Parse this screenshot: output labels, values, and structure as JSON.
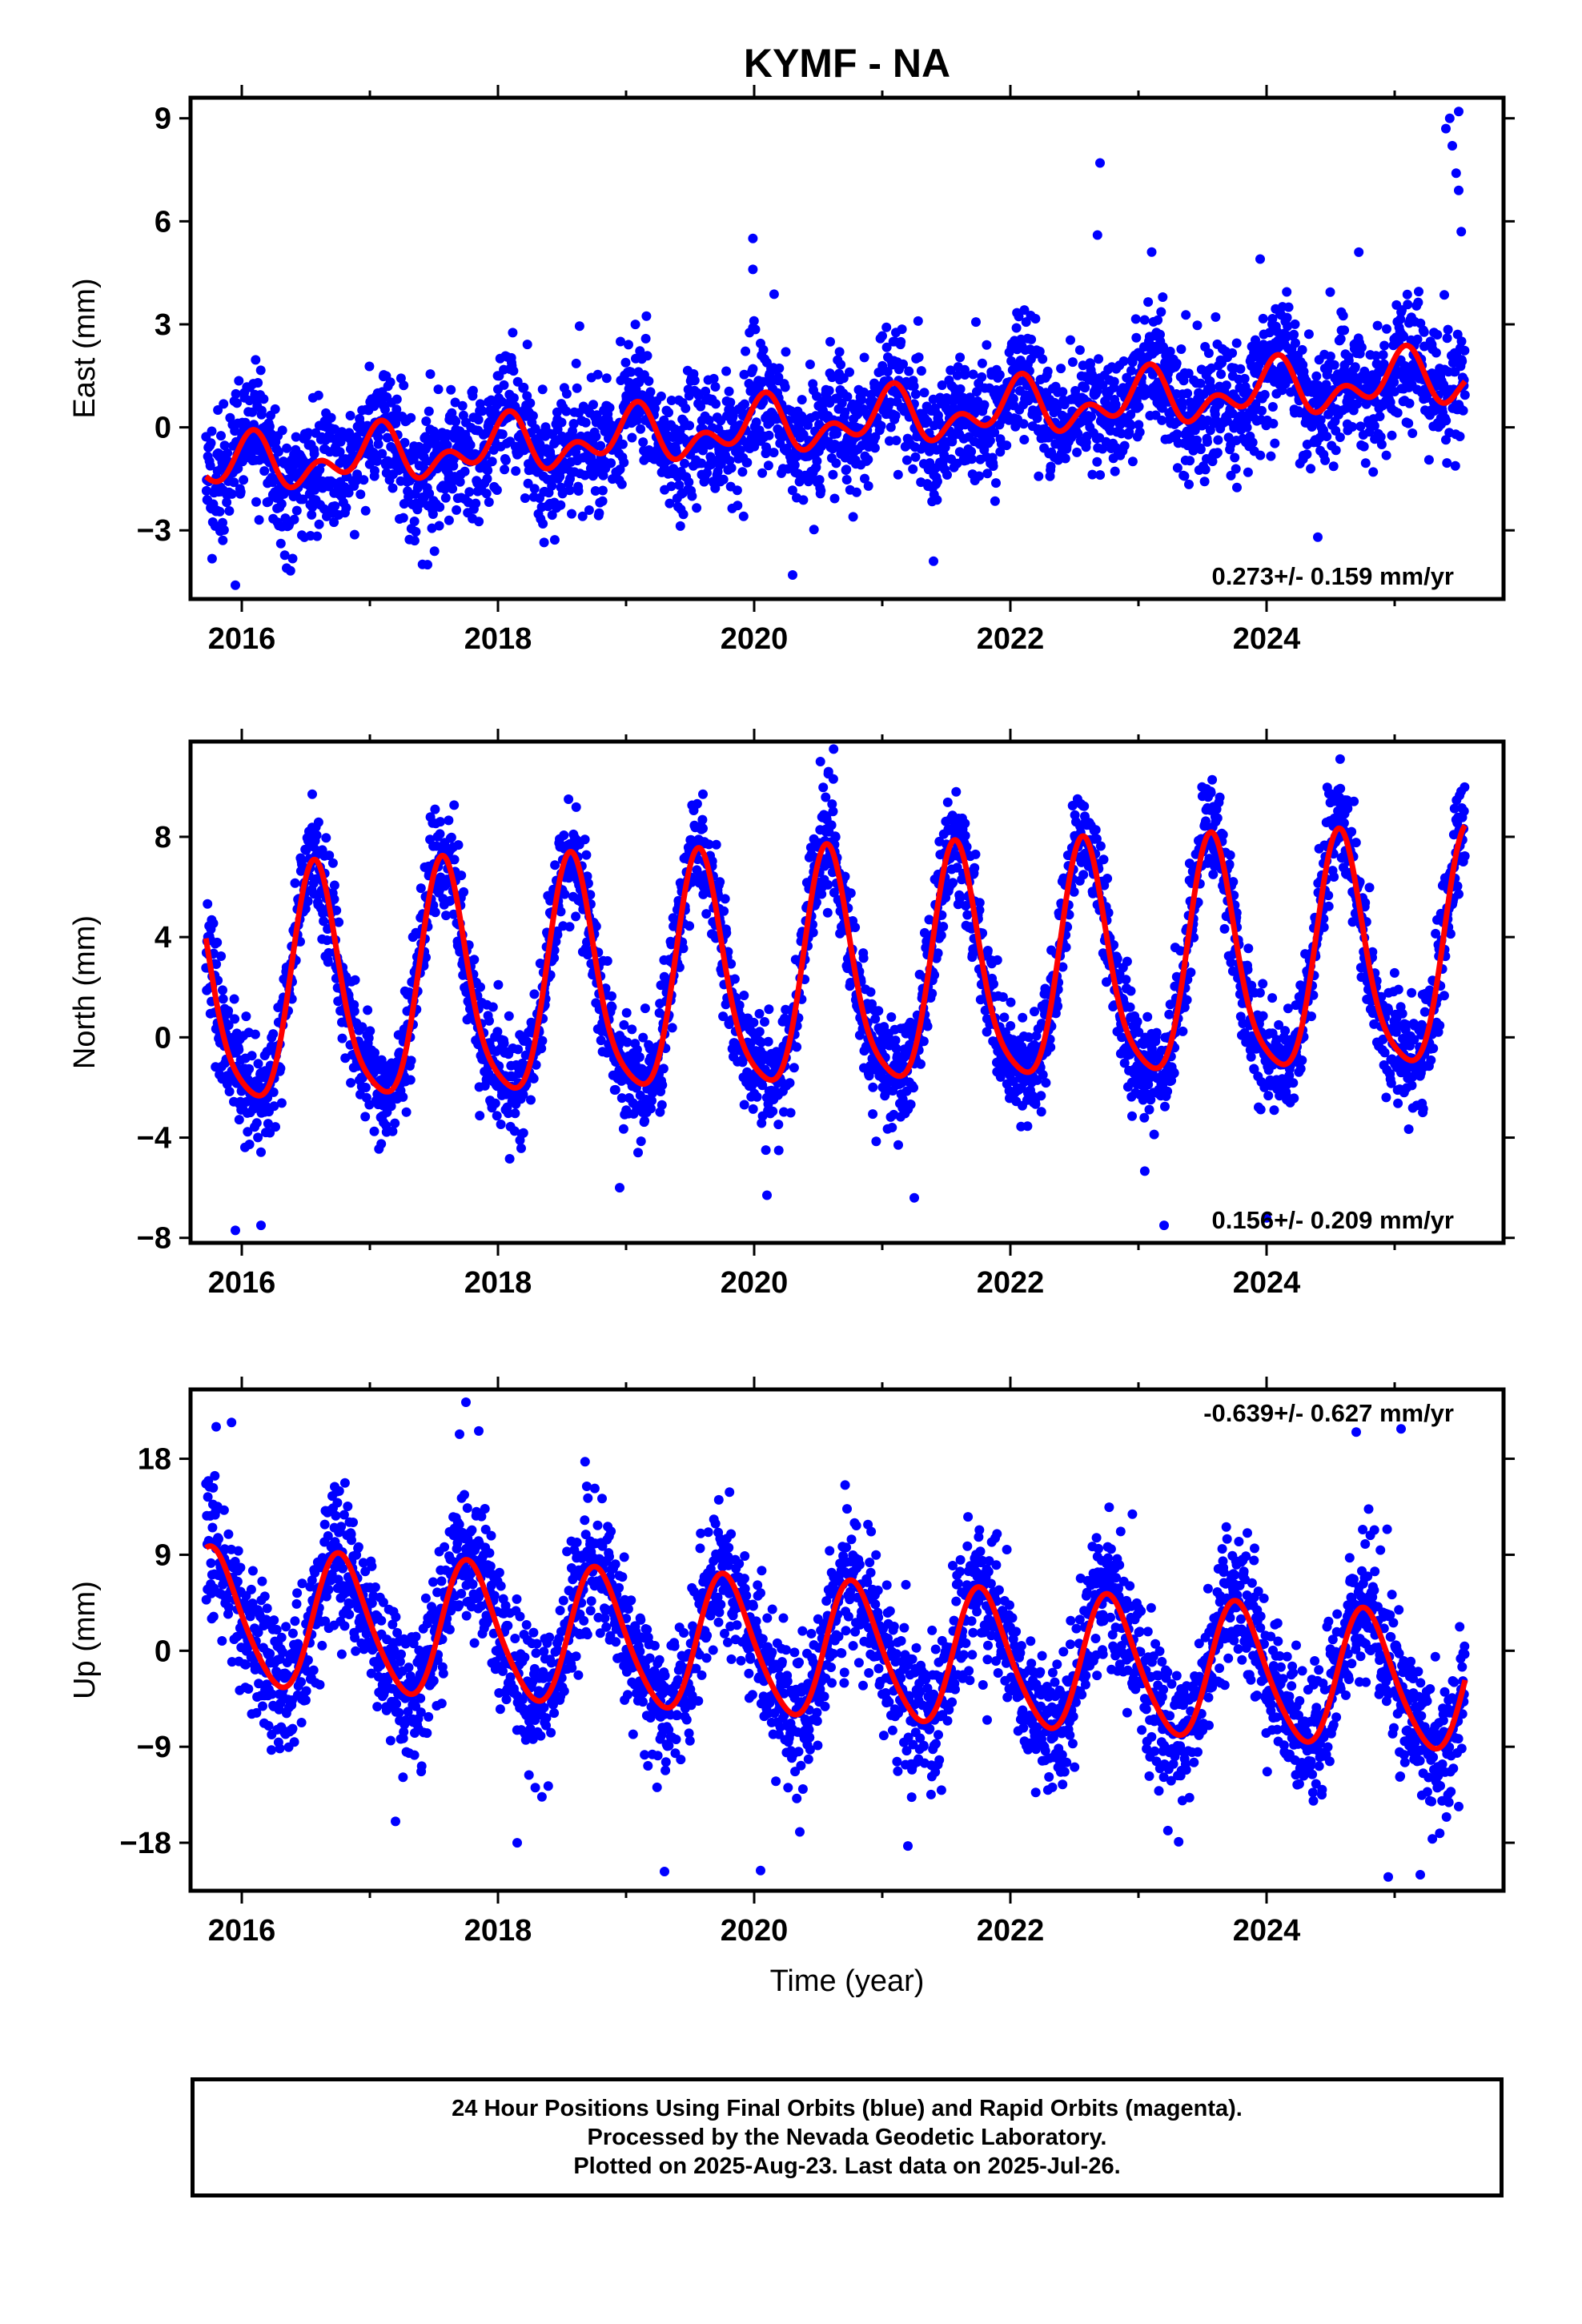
{
  "colors": {
    "observations": "#0000ff",
    "model_fit": "#ff0000",
    "frame": "#000000"
  },
  "chart_data": {
    "type": "scatter",
    "title": "KYMF - NA",
    "xlabel": "Time (year)",
    "xlim": [
      2015.6,
      2025.85
    ],
    "xticks": [
      "2016",
      "2018",
      "2020",
      "2022",
      "2024"
    ],
    "panels": [
      {
        "ylabel": "East (mm)",
        "ylim": [
          -5,
          9.6
        ],
        "yticks": [
          "-3",
          "0",
          "3",
          "6",
          "9"
        ],
        "rate_text": "0.273+/- 0.159 mm/yr",
        "rate_position": "bottom-right",
        "fit": {
          "offset": -1.2,
          "rate": 0.273,
          "annual_amplitude": 0.55,
          "annual_peak": 0.05,
          "semiannual_amplitude": 0.5,
          "semiannual_peak": 0.1,
          "fit_end": 2025.55
        },
        "scatter_sigma": 0.9,
        "outliers": [
          {
            "x": 2019.99,
            "y": 5.5
          },
          {
            "x": 2019.99,
            "y": 4.6
          },
          {
            "x": 2019.99,
            "y": 2.9
          },
          {
            "x": 2022.7,
            "y": 7.7
          },
          {
            "x": 2022.68,
            "y": 5.6
          },
          {
            "x": 2023.95,
            "y": 4.9
          },
          {
            "x": 2024.72,
            "y": 5.1
          },
          {
            "x": 2025.4,
            "y": 8.7
          },
          {
            "x": 2025.45,
            "y": 8.2
          },
          {
            "x": 2025.48,
            "y": 7.4
          },
          {
            "x": 2025.5,
            "y": 6.9
          },
          {
            "x": 2025.52,
            "y": 5.7
          },
          {
            "x": 2025.43,
            "y": 9.0
          },
          {
            "x": 2025.5,
            "y": 9.2
          },
          {
            "x": 2020.3,
            "y": -4.3
          },
          {
            "x": 2021.4,
            "y": -3.9
          },
          {
            "x": 2015.95,
            "y": -4.6
          },
          {
            "x": 2016.35,
            "y": -4.1
          },
          {
            "x": 2017.45,
            "y": -4.0
          },
          {
            "x": 2024.4,
            "y": -3.2
          }
        ],
        "seed": 11
      },
      {
        "ylabel": "North (mm)",
        "ylim": [
          -8.2,
          11.8
        ],
        "yticks": [
          "-8",
          "-4",
          "0",
          "4",
          "8"
        ],
        "rate_text": "0.156+/- 0.209 mm/yr",
        "rate_position": "bottom-right",
        "fit": {
          "offset": 1.5,
          "rate": 0.156,
          "annual_amplitude": 4.6,
          "annual_peak": 0.58,
          "semiannual_amplitude": 0.9,
          "semiannual_peak": 0.55,
          "fit_end": 2025.55
        },
        "scatter_sigma": 1.1,
        "outliers": [
          {
            "x": 2020.62,
            "y": 11.5
          },
          {
            "x": 2020.58,
            "y": 10.6
          },
          {
            "x": 2019.6,
            "y": 9.7
          },
          {
            "x": 2016.55,
            "y": 9.7
          },
          {
            "x": 2024.55,
            "y": 9.6
          },
          {
            "x": 2015.95,
            "y": -7.7
          },
          {
            "x": 2016.15,
            "y": -7.5
          },
          {
            "x": 2024.0,
            "y": -7.2
          },
          {
            "x": 2023.2,
            "y": -7.5
          },
          {
            "x": 2020.1,
            "y": -6.3
          },
          {
            "x": 2021.25,
            "y": -6.4
          },
          {
            "x": 2018.95,
            "y": -6.0
          }
        ],
        "seed": 23
      },
      {
        "ylabel": "Up (mm)",
        "ylim": [
          -22.5,
          24.5
        ],
        "yticks": [
          "-18",
          "-9",
          "0",
          "9",
          "18"
        ],
        "rate_text": "-0.639+/- 0.627 mm/yr",
        "rate_position": "top-right",
        "fit": {
          "offset": 3.0,
          "rate": -0.639,
          "annual_amplitude": 6.3,
          "annual_peak": 0.78,
          "semiannual_amplitude": 0.8,
          "semiannual_peak": 0.2,
          "fit_end": 2025.55
        },
        "scatter_sigma": 3.2,
        "outliers": [
          {
            "x": 2017.75,
            "y": 23.3
          },
          {
            "x": 2015.8,
            "y": 21.0
          },
          {
            "x": 2015.92,
            "y": 21.4
          },
          {
            "x": 2017.7,
            "y": 20.3
          },
          {
            "x": 2017.85,
            "y": 20.6
          },
          {
            "x": 2024.7,
            "y": 20.5
          },
          {
            "x": 2025.05,
            "y": 20.8
          },
          {
            "x": 2019.3,
            "y": -20.7
          },
          {
            "x": 2020.05,
            "y": -20.6
          },
          {
            "x": 2024.95,
            "y": -21.2
          },
          {
            "x": 2025.2,
            "y": -21.0
          },
          {
            "x": 2017.2,
            "y": -16.0
          },
          {
            "x": 2018.15,
            "y": -18.0
          },
          {
            "x": 2021.2,
            "y": -18.3
          }
        ],
        "seed": 37
      }
    ]
  },
  "footer": {
    "line1": "24 Hour Positions Using Final Orbits (blue) and Rapid Orbits (magenta).",
    "line2": "Processed by the Nevada Geodetic Laboratory.",
    "line3": "Plotted on 2025-Aug-23. Last data on 2025-Jul-26."
  }
}
